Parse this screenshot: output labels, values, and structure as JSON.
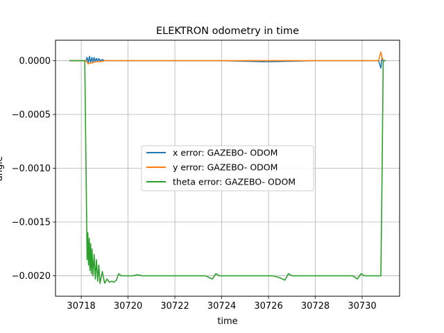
{
  "chart_data": {
    "type": "line",
    "title": "ELEKTRON odometry in time",
    "xlabel": "time",
    "ylabel": "angle",
    "xlim": [
      30716.9,
      30731.6
    ],
    "ylim": [
      -0.00219,
      0.00019
    ],
    "xticks": [
      30718,
      30720,
      30722,
      30724,
      30726,
      30728,
      30730
    ],
    "xtick_labels": [
      "30718",
      "30720",
      "30722",
      "30724",
      "30726",
      "30728",
      "30730"
    ],
    "yticks": [
      0.0,
      -0.0005,
      -0.001,
      -0.0015,
      -0.002
    ],
    "ytick_labels": [
      "0.0000",
      "−0.0005",
      "−0.0010",
      "−0.0015",
      "−0.0020"
    ],
    "grid": true,
    "legend_position": "center",
    "series": [
      {
        "name": "x error: GAZEBO- ODOM",
        "color": "#1f77b4",
        "x": [
          30717.5,
          30718.0,
          30718.2,
          30718.25,
          30718.3,
          30718.35,
          30718.4,
          30718.45,
          30718.5,
          30718.55,
          30718.6,
          30718.65,
          30718.7,
          30718.75,
          30718.8,
          30718.9,
          30719.0,
          30719.2,
          30719.6,
          30720.5,
          30722.0,
          30724.0,
          30726.0,
          30728.0,
          30730.0,
          30730.7,
          30730.8,
          30730.85,
          30730.9,
          30731.0
        ],
        "y": [
          0.0,
          0.0,
          0.0,
          3e-05,
          -2e-05,
          4e-05,
          -2e-05,
          3e-05,
          -1e-05,
          3e-05,
          -1e-05,
          2e-05,
          0.0,
          2e-05,
          0.0,
          1e-05,
          0.0,
          0.0,
          0.0,
          0.0,
          0.0,
          0.0,
          -1e-05,
          0.0,
          0.0,
          0.0,
          -7e-05,
          3e-05,
          0.0,
          0.0
        ]
      },
      {
        "name": "y error: GAZEBO- ODOM",
        "color": "#ff7f0e",
        "x": [
          30717.5,
          30718.0,
          30718.2,
          30718.3,
          30718.4,
          30718.5,
          30718.6,
          30718.7,
          30718.8,
          30719.0,
          30719.3,
          30719.6,
          30720.0,
          30722.0,
          30723.6,
          30724.0,
          30726.5,
          30727.0,
          30729.0,
          30730.0,
          30730.7,
          30730.8,
          30730.85,
          30730.9,
          30731.0
        ],
        "y": [
          0.0,
          0.0,
          0.0,
          -3e-05,
          -2e-05,
          -2e-05,
          -1e-05,
          -1e-05,
          -1e-05,
          0.0,
          0.0,
          0.0,
          0.0,
          0.0,
          0.0,
          0.0,
          0.0,
          0.0,
          0.0,
          0.0,
          0.0,
          8e-05,
          3e-05,
          0.0,
          0.0
        ]
      },
      {
        "name": "theta error: GAZEBO- ODOM",
        "color": "#2ca02c",
        "x": [
          30717.5,
          30718.0,
          30718.15,
          30718.25,
          30718.28,
          30718.31,
          30718.34,
          30718.37,
          30718.4,
          30718.43,
          30718.46,
          30718.5,
          30718.55,
          30718.6,
          30718.65,
          30718.7,
          30718.75,
          30718.8,
          30718.9,
          30719.0,
          30719.1,
          30719.2,
          30719.3,
          30719.4,
          30719.5,
          30719.6,
          30719.7,
          30719.9,
          30720.2,
          30720.4,
          30720.6,
          30720.9,
          30721.5,
          30722.5,
          30723.3,
          30723.5,
          30723.6,
          30723.75,
          30723.9,
          30724.2,
          30725.0,
          30726.2,
          30726.5,
          30726.7,
          30726.85,
          30727.0,
          30727.3,
          30728.5,
          30729.6,
          30729.8,
          30729.95,
          30730.1,
          30730.4,
          30730.8,
          30730.85,
          30730.9,
          30731.0
        ],
        "y": [
          0.0,
          0.0,
          0.0,
          -0.00185,
          -0.0016,
          -0.0019,
          -0.00165,
          -0.00195,
          -0.0017,
          -0.00198,
          -0.00175,
          -0.002,
          -0.0018,
          -0.00203,
          -0.00185,
          -0.00205,
          -0.0019,
          -0.00207,
          -0.00196,
          -0.00207,
          -0.00203,
          -0.00206,
          -0.00205,
          -0.00206,
          -0.00204,
          -0.00198,
          -0.002,
          -0.002,
          -0.002,
          -0.00199,
          -0.002,
          -0.002,
          -0.002,
          -0.002,
          -0.002,
          -0.00202,
          -0.00203,
          -0.00198,
          -0.002,
          -0.002,
          -0.002,
          -0.002,
          -0.00202,
          -0.00204,
          -0.00198,
          -0.002,
          -0.002,
          -0.002,
          -0.002,
          -0.00203,
          -0.00198,
          -0.002,
          -0.002,
          -0.002,
          -0.0011,
          0.0,
          0.0
        ]
      }
    ]
  }
}
